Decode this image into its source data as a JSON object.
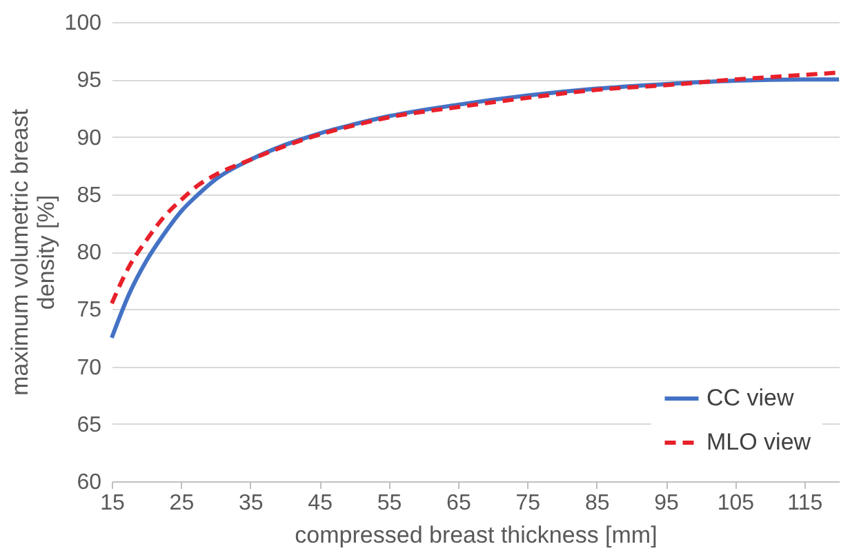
{
  "chart_data": {
    "type": "line",
    "xlabel": "compressed breast thickness [mm]",
    "ylabel": "maximum volumetric breast density [%]",
    "x": [
      15,
      17.5,
      20,
      22.5,
      25,
      27.5,
      30,
      35,
      40,
      45,
      50,
      55,
      65,
      75,
      85,
      95,
      105,
      115,
      120
    ],
    "series": [
      {
        "name": "CC view",
        "color": "#4472c4",
        "line_style": "solid",
        "values": [
          72.5,
          76.3,
          79.2,
          81.5,
          83.5,
          85.0,
          86.3,
          88.0,
          89.3,
          90.3,
          91.1,
          91.8,
          92.8,
          93.6,
          94.2,
          94.6,
          94.9,
          95.0,
          95.0
        ]
      },
      {
        "name": "MLO view",
        "color": "#e8202a",
        "line_style": "dashed",
        "values": [
          75.5,
          78.7,
          81.0,
          83.0,
          84.5,
          85.8,
          86.7,
          88.0,
          89.2,
          90.2,
          91.0,
          91.7,
          92.6,
          93.4,
          94.1,
          94.5,
          95.0,
          95.4,
          95.6
        ]
      }
    ],
    "xlim": [
      15,
      120
    ],
    "xticks": [
      15,
      25,
      35,
      45,
      55,
      65,
      75,
      85,
      95,
      105,
      115
    ],
    "ylim": [
      60,
      100
    ],
    "yticks": [
      60,
      65,
      70,
      75,
      80,
      85,
      90,
      95,
      100
    ],
    "grid": "y",
    "legend": "bottom right"
  }
}
